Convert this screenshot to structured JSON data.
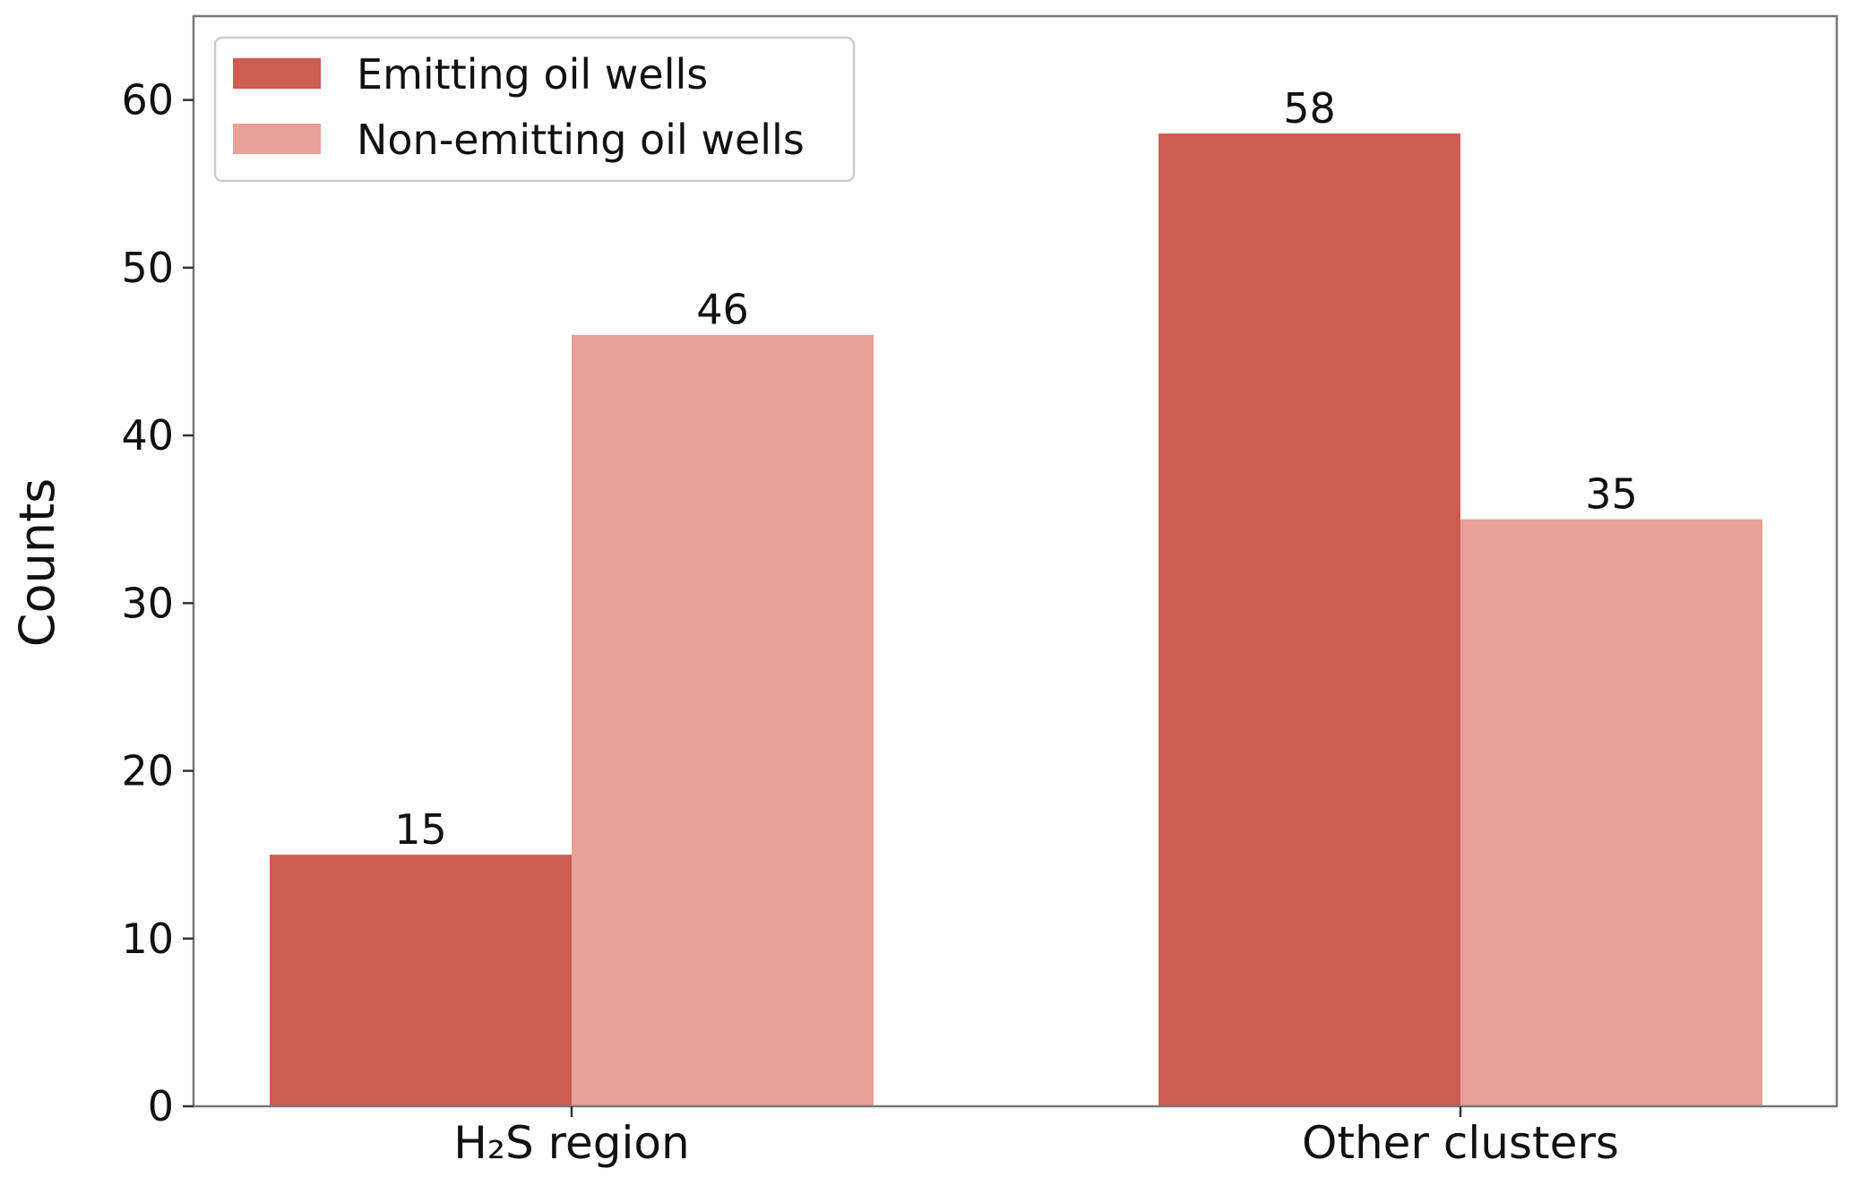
{
  "chart_data": {
    "type": "bar",
    "categories": [
      "H₂S region",
      "Other clusters"
    ],
    "series": [
      {
        "name": "Emitting oil wells",
        "values": [
          15,
          58
        ],
        "color": "#cd5c51"
      },
      {
        "name": "Non-emitting oil wells",
        "values": [
          46,
          35
        ],
        "color": "#e8a097"
      }
    ],
    "title": "",
    "xlabel": "",
    "ylabel": "Counts",
    "ylim": [
      0,
      65
    ],
    "yticks": [
      0,
      10,
      20,
      30,
      40,
      50,
      60
    ],
    "grid": false,
    "legend_position": "top-left",
    "data_labels": true
  }
}
